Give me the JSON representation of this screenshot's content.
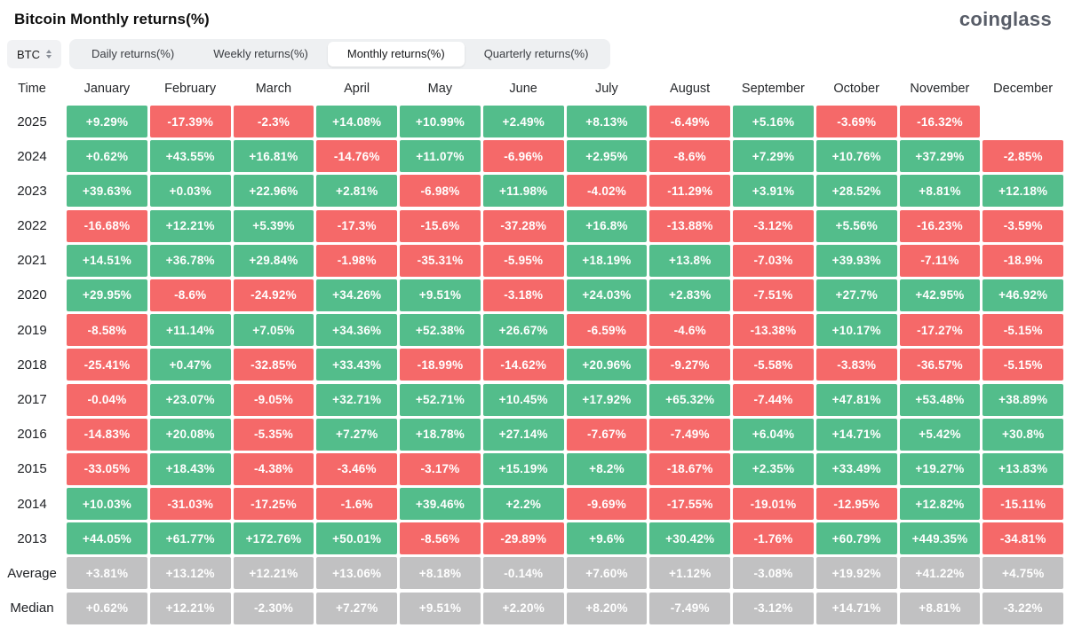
{
  "header": {
    "title": "Bitcoin Monthly returns(%)",
    "logo": "coinglass"
  },
  "controls": {
    "coin_selector": "BTC",
    "tabs": [
      {
        "id": "daily",
        "label": "Daily returns(%)",
        "active": false
      },
      {
        "id": "weekly",
        "label": "Weekly returns(%)",
        "active": false
      },
      {
        "id": "monthly",
        "label": "Monthly returns(%)",
        "active": true
      },
      {
        "id": "quarterly",
        "label": "Quarterly returns(%)",
        "active": false
      }
    ]
  },
  "colors": {
    "positive": "#53bd8b",
    "negative": "#f56969",
    "neutral": "#c1c1c2"
  },
  "chart_data": {
    "type": "heatmap",
    "title": "Bitcoin Monthly returns(%)",
    "columns": [
      "Time",
      "January",
      "February",
      "March",
      "April",
      "May",
      "June",
      "July",
      "August",
      "September",
      "October",
      "November",
      "December"
    ],
    "rows": [
      {
        "label": "2025",
        "aggregate": false,
        "values": [
          "+9.29%",
          "-17.39%",
          "-2.3%",
          "+14.08%",
          "+10.99%",
          "+2.49%",
          "+8.13%",
          "-6.49%",
          "+5.16%",
          "-3.69%",
          "-16.32%",
          ""
        ]
      },
      {
        "label": "2024",
        "aggregate": false,
        "values": [
          "+0.62%",
          "+43.55%",
          "+16.81%",
          "-14.76%",
          "+11.07%",
          "-6.96%",
          "+2.95%",
          "-8.6%",
          "+7.29%",
          "+10.76%",
          "+37.29%",
          "-2.85%"
        ]
      },
      {
        "label": "2023",
        "aggregate": false,
        "values": [
          "+39.63%",
          "+0.03%",
          "+22.96%",
          "+2.81%",
          "-6.98%",
          "+11.98%",
          "-4.02%",
          "-11.29%",
          "+3.91%",
          "+28.52%",
          "+8.81%",
          "+12.18%"
        ]
      },
      {
        "label": "2022",
        "aggregate": false,
        "values": [
          "-16.68%",
          "+12.21%",
          "+5.39%",
          "-17.3%",
          "-15.6%",
          "-37.28%",
          "+16.8%",
          "-13.88%",
          "-3.12%",
          "+5.56%",
          "-16.23%",
          "-3.59%"
        ]
      },
      {
        "label": "2021",
        "aggregate": false,
        "values": [
          "+14.51%",
          "+36.78%",
          "+29.84%",
          "-1.98%",
          "-35.31%",
          "-5.95%",
          "+18.19%",
          "+13.8%",
          "-7.03%",
          "+39.93%",
          "-7.11%",
          "-18.9%"
        ]
      },
      {
        "label": "2020",
        "aggregate": false,
        "values": [
          "+29.95%",
          "-8.6%",
          "-24.92%",
          "+34.26%",
          "+9.51%",
          "-3.18%",
          "+24.03%",
          "+2.83%",
          "-7.51%",
          "+27.7%",
          "+42.95%",
          "+46.92%"
        ]
      },
      {
        "label": "2019",
        "aggregate": false,
        "values": [
          "-8.58%",
          "+11.14%",
          "+7.05%",
          "+34.36%",
          "+52.38%",
          "+26.67%",
          "-6.59%",
          "-4.6%",
          "-13.38%",
          "+10.17%",
          "-17.27%",
          "-5.15%"
        ]
      },
      {
        "label": "2018",
        "aggregate": false,
        "values": [
          "-25.41%",
          "+0.47%",
          "-32.85%",
          "+33.43%",
          "-18.99%",
          "-14.62%",
          "+20.96%",
          "-9.27%",
          "-5.58%",
          "-3.83%",
          "-36.57%",
          "-5.15%"
        ]
      },
      {
        "label": "2017",
        "aggregate": false,
        "values": [
          "-0.04%",
          "+23.07%",
          "-9.05%",
          "+32.71%",
          "+52.71%",
          "+10.45%",
          "+17.92%",
          "+65.32%",
          "-7.44%",
          "+47.81%",
          "+53.48%",
          "+38.89%"
        ]
      },
      {
        "label": "2016",
        "aggregate": false,
        "values": [
          "-14.83%",
          "+20.08%",
          "-5.35%",
          "+7.27%",
          "+18.78%",
          "+27.14%",
          "-7.67%",
          "-7.49%",
          "+6.04%",
          "+14.71%",
          "+5.42%",
          "+30.8%"
        ]
      },
      {
        "label": "2015",
        "aggregate": false,
        "values": [
          "-33.05%",
          "+18.43%",
          "-4.38%",
          "-3.46%",
          "-3.17%",
          "+15.19%",
          "+8.2%",
          "-18.67%",
          "+2.35%",
          "+33.49%",
          "+19.27%",
          "+13.83%"
        ]
      },
      {
        "label": "2014",
        "aggregate": false,
        "values": [
          "+10.03%",
          "-31.03%",
          "-17.25%",
          "-1.6%",
          "+39.46%",
          "+2.2%",
          "-9.69%",
          "-17.55%",
          "-19.01%",
          "-12.95%",
          "+12.82%",
          "-15.11%"
        ]
      },
      {
        "label": "2013",
        "aggregate": false,
        "values": [
          "+44.05%",
          "+61.77%",
          "+172.76%",
          "+50.01%",
          "-8.56%",
          "-29.89%",
          "+9.6%",
          "+30.42%",
          "-1.76%",
          "+60.79%",
          "+449.35%",
          "-34.81%"
        ]
      },
      {
        "label": "Average",
        "aggregate": true,
        "values": [
          "+3.81%",
          "+13.12%",
          "+12.21%",
          "+13.06%",
          "+8.18%",
          "-0.14%",
          "+7.60%",
          "+1.12%",
          "-3.08%",
          "+19.92%",
          "+41.22%",
          "+4.75%"
        ]
      },
      {
        "label": "Median",
        "aggregate": true,
        "values": [
          "+0.62%",
          "+12.21%",
          "-2.30%",
          "+7.27%",
          "+9.51%",
          "+2.20%",
          "+8.20%",
          "-7.49%",
          "-3.12%",
          "+14.71%",
          "+8.81%",
          "-3.22%"
        ]
      }
    ]
  }
}
